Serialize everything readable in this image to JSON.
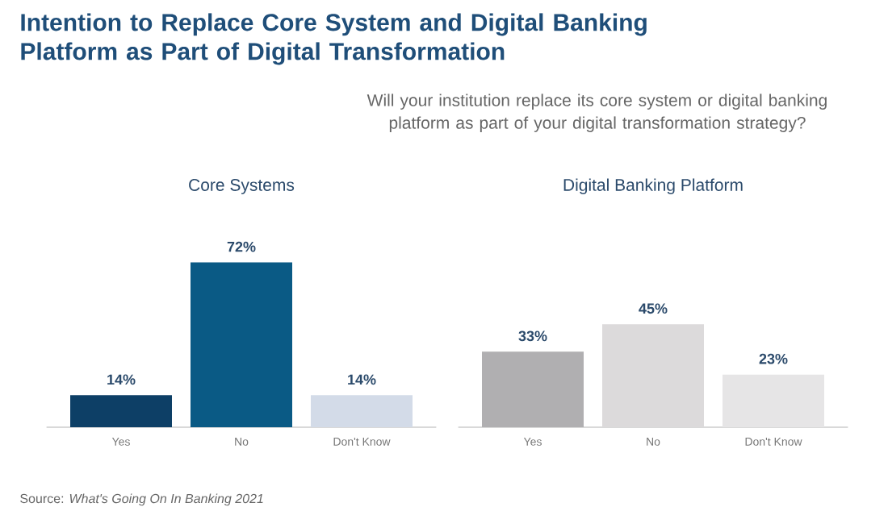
{
  "chart_data": [
    {
      "type": "other",
      "title": "Intention to Replace Core System and Digital Banking Platform as Part of Digital Transformation",
      "subtitle": "Will your institution replace its core system or digital banking platform as part of your digital transformation strategy?",
      "annotations": [
        "Source: *What's Going On In Banking 2021*"
      ]
    },
    {
      "type": "bar",
      "title": "Core Systems",
      "categories": [
        "Yes",
        "No",
        "Don't Know"
      ],
      "values": [
        14,
        72,
        14
      ],
      "colors": [
        "#0d3f66",
        "#0a5a85",
        "#d3dbe8"
      ],
      "value_labels": [
        "14%",
        "72%",
        "14%"
      ]
    },
    {
      "type": "bar",
      "title": "Digital Banking Platform",
      "categories": [
        "Yes",
        "No",
        "Don't Know"
      ],
      "values": [
        33,
        45,
        23
      ],
      "colors": [
        "#b0afb1",
        "#dcdadb",
        "#e6e5e6"
      ],
      "value_labels": [
        "33%",
        "45%",
        "23%"
      ]
    }
  ]
}
